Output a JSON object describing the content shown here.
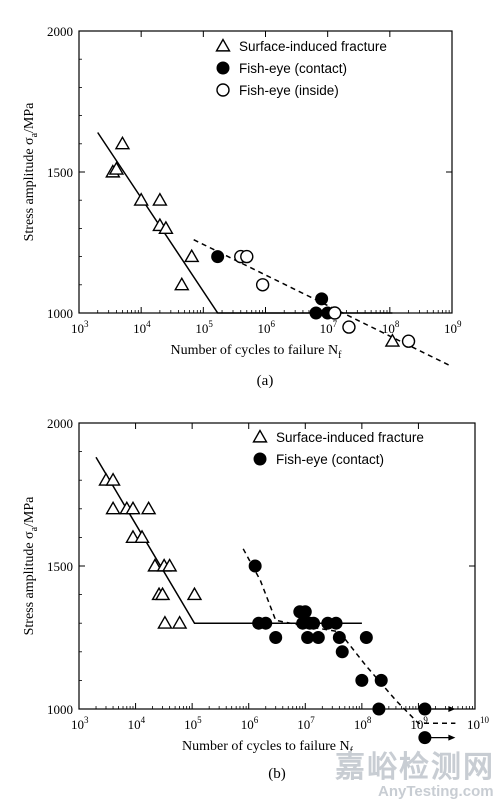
{
  "chart_data": [
    {
      "type": "scatter",
      "panel_label": "(a)",
      "xlabel": "Number of cycles to failure N",
      "xlabel_sub": "f",
      "ylabel": "Stress amplitude σ",
      "ylabel_sub": "a",
      "ylabel_suffix": "/MPa",
      "x_scale": "log",
      "xlim": [
        1000,
        1000000000
      ],
      "ylim": [
        1000,
        2000
      ],
      "x_ticks": [
        1000,
        10000,
        100000,
        1000000,
        10000000,
        100000000,
        1000000000
      ],
      "x_tick_labels": [
        [
          "10",
          "3"
        ],
        [
          "10",
          "4"
        ],
        [
          "10",
          "5"
        ],
        [
          "10",
          "6"
        ],
        [
          "10",
          "7"
        ],
        [
          "10",
          "8"
        ],
        [
          "10",
          "9"
        ]
      ],
      "y_ticks": [
        1000,
        1500,
        2000
      ],
      "y_tick_labels": [
        "1000",
        "1500",
        "2000"
      ],
      "legend": {
        "position": "top-right",
        "entries": [
          {
            "name": "Surface-induced fracture",
            "marker": "triangle-open"
          },
          {
            "name": "Fish-eye (contact)",
            "marker": "circle-filled"
          },
          {
            "name": "Fish-eye (inside)",
            "marker": "circle-open"
          }
        ]
      },
      "series": [
        {
          "name": "Surface-induced fracture",
          "marker": "triangle-open",
          "points": [
            [
              3500,
              1500
            ],
            [
              4000,
              1510
            ],
            [
              5000,
              1600
            ],
            [
              10000,
              1400
            ],
            [
              20000,
              1400
            ],
            [
              20000,
              1310
            ],
            [
              25000,
              1300
            ],
            [
              45000,
              1100
            ],
            [
              65000,
              1200
            ],
            [
              110000000,
              900
            ]
          ]
        },
        {
          "name": "Fish-eye (contact)",
          "marker": "circle-filled",
          "points": [
            [
              170000,
              1200
            ],
            [
              6500000,
              1000
            ],
            [
              8000000,
              1050
            ],
            [
              10000000,
              1000
            ]
          ]
        },
        {
          "name": "Fish-eye (inside)",
          "marker": "circle-open",
          "points": [
            [
              400000,
              1200
            ],
            [
              500000,
              1200
            ],
            [
              900000,
              1100
            ],
            [
              13000000,
              1000
            ],
            [
              22000000,
              950
            ],
            [
              200000000,
              900
            ]
          ]
        }
      ],
      "lines": [
        {
          "style": "solid",
          "points": [
            [
              2000,
              1640
            ],
            [
              170000,
              1000
            ],
            [
              110000000,
              1000
            ]
          ]
        },
        {
          "style": "dashed",
          "points": [
            [
              70000,
              1260
            ],
            [
              1000000000,
              810
            ]
          ]
        }
      ]
    },
    {
      "type": "scatter",
      "panel_label": "(b)",
      "xlabel": "Number of cycles to failure N",
      "xlabel_sub": "f",
      "ylabel": "Stress amplitude σ",
      "ylabel_sub": "a",
      "ylabel_suffix": "/MPa",
      "x_scale": "log",
      "xlim": [
        1000,
        10000000000
      ],
      "ylim": [
        1000,
        2000
      ],
      "x_ticks": [
        1000,
        10000,
        100000,
        1000000,
        10000000,
        100000000,
        1000000000,
        10000000000
      ],
      "x_tick_labels": [
        [
          "10",
          "3"
        ],
        [
          "10",
          "4"
        ],
        [
          "10",
          "5"
        ],
        [
          "10",
          "6"
        ],
        [
          "10",
          "7"
        ],
        [
          "10",
          "8"
        ],
        [
          "10",
          "9"
        ],
        [
          "10",
          "10"
        ]
      ],
      "y_ticks": [
        1000,
        1500,
        2000
      ],
      "y_tick_labels": [
        "1000",
        "1500",
        "2000"
      ],
      "legend": {
        "position": "top-right",
        "entries": [
          {
            "name": "Surface-induced fracture",
            "marker": "triangle-open"
          },
          {
            "name": "Fish-eye (contact)",
            "marker": "circle-filled"
          }
        ]
      },
      "series": [
        {
          "name": "Surface-induced fracture",
          "marker": "triangle-open",
          "points": [
            [
              3000,
              1800
            ],
            [
              4000,
              1800
            ],
            [
              4000,
              1700
            ],
            [
              7000,
              1700
            ],
            [
              9000,
              1700
            ],
            [
              9000,
              1600
            ],
            [
              13000,
              1600
            ],
            [
              17000,
              1700
            ],
            [
              22000,
              1500
            ],
            [
              26000,
              1400
            ],
            [
              30000,
              1400
            ],
            [
              32000,
              1500
            ],
            [
              33000,
              1300
            ],
            [
              40000,
              1500
            ],
            [
              60000,
              1300
            ],
            [
              110000,
              1400
            ]
          ]
        },
        {
          "name": "Fish-eye (contact)",
          "marker": "circle-filled",
          "points": [
            [
              1300000,
              1500
            ],
            [
              1500000,
              1300
            ],
            [
              2000000,
              1300
            ],
            [
              3000000,
              1250
            ],
            [
              8000000,
              1340
            ],
            [
              9000000,
              1300
            ],
            [
              10000000,
              1340
            ],
            [
              11000000,
              1250
            ],
            [
              12000000,
              1300
            ],
            [
              14000000,
              1300
            ],
            [
              17000000,
              1250
            ],
            [
              25000000,
              1300
            ],
            [
              35000000,
              1300
            ],
            [
              40000000,
              1250
            ],
            [
              45000000,
              1200
            ],
            [
              100000000,
              1100
            ],
            [
              120000000,
              1250
            ],
            [
              200000000,
              1000
            ],
            [
              220000000,
              1100
            ],
            [
              1300000000,
              1000
            ],
            [
              1300000000,
              900
            ]
          ]
        }
      ],
      "runouts": [
        {
          "from": [
            1300000000,
            1000
          ],
          "to": [
            4500000000,
            1000
          ]
        },
        {
          "from": [
            1300000000,
            900
          ],
          "to": [
            4500000000,
            900
          ]
        }
      ],
      "lines": [
        {
          "style": "solid",
          "points": [
            [
              2000,
              1880
            ],
            [
              110000,
              1300
            ],
            [
              100000000,
              1300
            ]
          ]
        },
        {
          "style": "dashed",
          "points": [
            [
              800000,
              1560
            ],
            [
              1600000,
              1450
            ],
            [
              3000000,
              1310
            ],
            [
              10000000,
              1290
            ],
            [
              40000000,
              1270
            ],
            [
              120000000,
              1150
            ],
            [
              400000000,
              1030
            ],
            [
              1000000000,
              950
            ],
            [
              4500000000,
              950
            ]
          ]
        }
      ]
    }
  ],
  "watermark": {
    "cn": "嘉峪检测网",
    "en": "AnyTesting.com"
  }
}
